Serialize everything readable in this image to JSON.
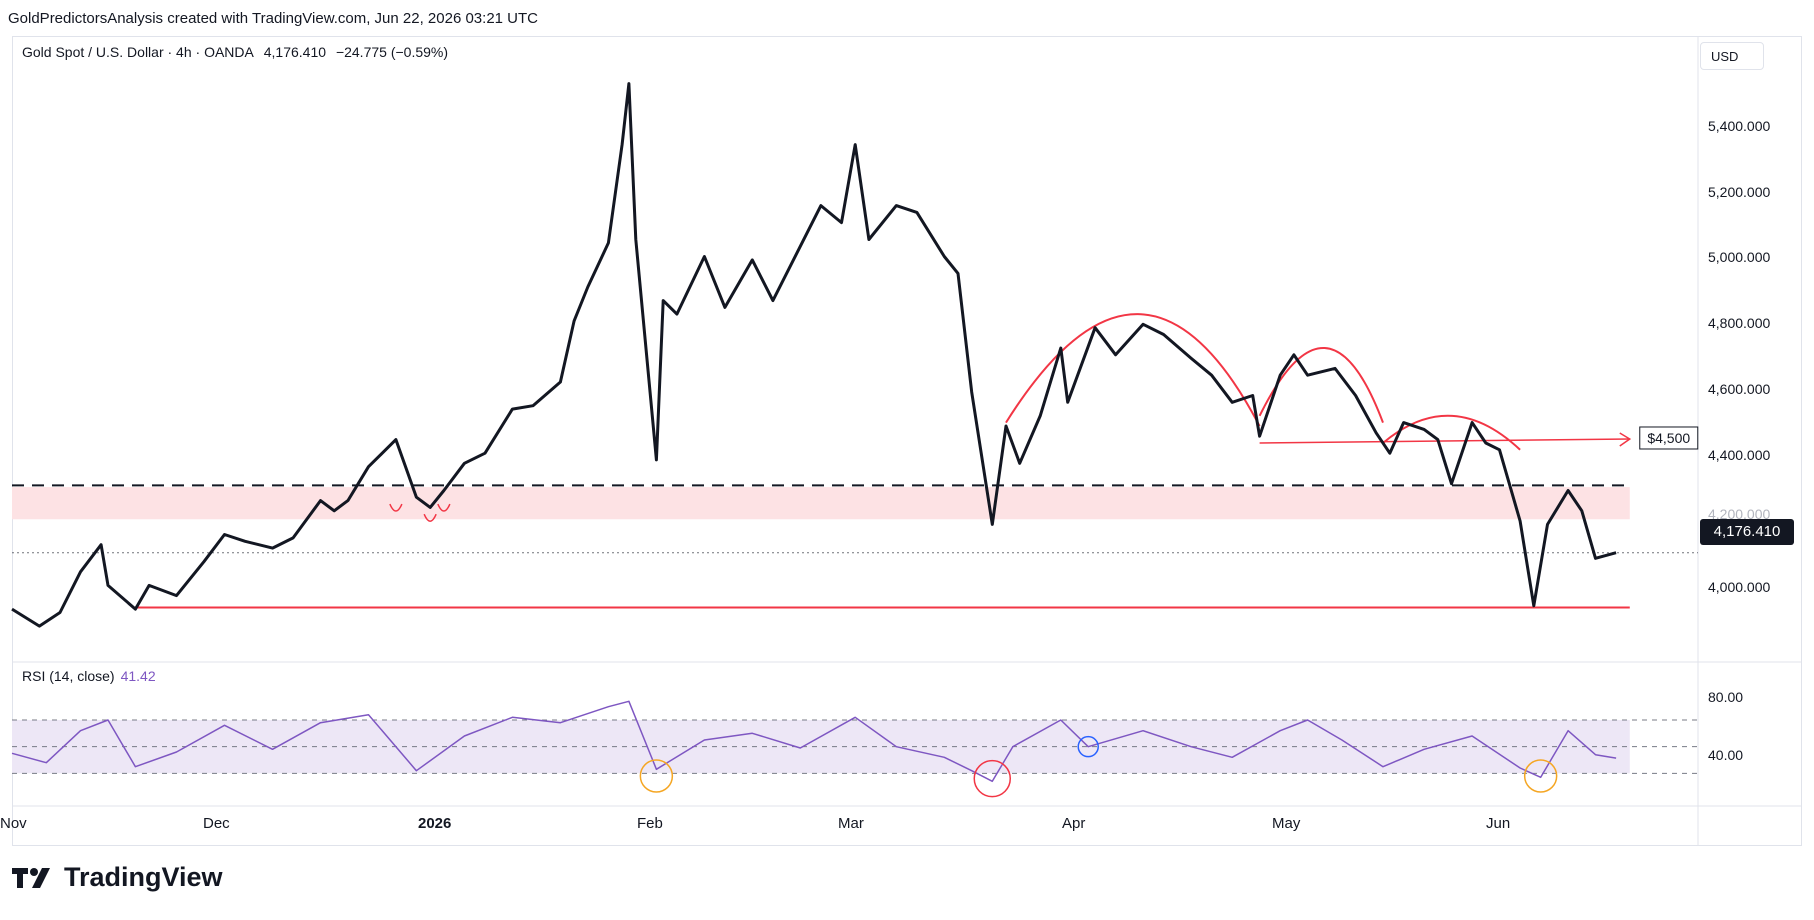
{
  "header": {
    "text": "GoldPredictorsAnalysis created with TradingView.com, Jun 22, 2026 03:21 UTC"
  },
  "legend": {
    "symbol": "Gold Spot / U.S. Dollar · 4h · OANDA",
    "last": "4,176.410",
    "change": "−24.775 (−0.59%)"
  },
  "rsi_legend": {
    "label": "RSI (14, close)",
    "value": "41.42"
  },
  "currency": "USD",
  "price_badge": "4,176.410",
  "brand": "TradingView",
  "colors": {
    "price": "#131722",
    "red": "#f23645",
    "rsi": "#7e57c2",
    "zone": "#fde2e4",
    "rsi_band": "#ede7f6"
  },
  "chart_data": [
    {
      "type": "line",
      "series": [
        {
          "values": [
            [
              "2025-10-31",
              4010
            ],
            [
              "2025-11-04",
              3960
            ],
            [
              "2025-11-07",
              4000
            ],
            [
              "2025-11-10",
              4120
            ],
            [
              "2025-11-13",
              4200
            ],
            [
              "2025-11-14",
              4080
            ],
            [
              "2025-11-18",
              4010
            ],
            [
              "2025-11-20",
              4080
            ],
            [
              "2025-11-24",
              4050
            ],
            [
              "2025-11-28",
              4150
            ],
            [
              "2025-12-01",
              4230
            ],
            [
              "2025-12-04",
              4210
            ],
            [
              "2025-12-08",
              4190
            ],
            [
              "2025-12-11",
              4220
            ],
            [
              "2025-12-15",
              4330
            ],
            [
              "2025-12-17",
              4300
            ],
            [
              "2025-12-19",
              4330
            ],
            [
              "2025-12-22",
              4430
            ],
            [
              "2025-12-26",
              4510
            ],
            [
              "2025-12-29",
              4340
            ],
            [
              "2025-12-31",
              4310
            ],
            [
              "2026-01-02",
              4360
            ],
            [
              "2026-01-05",
              4440
            ],
            [
              "2026-01-08",
              4470
            ],
            [
              "2026-01-12",
              4600
            ],
            [
              "2026-01-15",
              4610
            ],
            [
              "2026-01-19",
              4680
            ],
            [
              "2026-01-21",
              4860
            ],
            [
              "2026-01-23",
              4960
            ],
            [
              "2026-01-26",
              5090
            ],
            [
              "2026-01-28",
              5380
            ],
            [
              "2026-01-29",
              5560
            ],
            [
              "2026-01-30",
              5100
            ],
            [
              "2026-02-02",
              4450
            ],
            [
              "2026-02-03",
              4920
            ],
            [
              "2026-02-05",
              4880
            ],
            [
              "2026-02-09",
              5050
            ],
            [
              "2026-02-12",
              4900
            ],
            [
              "2026-02-16",
              5040
            ],
            [
              "2026-02-19",
              4920
            ],
            [
              "2026-02-23",
              5080
            ],
            [
              "2026-02-26",
              5200
            ],
            [
              "2026-03-01",
              5150
            ],
            [
              "2026-03-03",
              5380
            ],
            [
              "2026-03-05",
              5100
            ],
            [
              "2026-03-09",
              5200
            ],
            [
              "2026-03-12",
              5180
            ],
            [
              "2026-03-16",
              5050
            ],
            [
              "2026-03-18",
              5000
            ],
            [
              "2026-03-20",
              4650
            ],
            [
              "2026-03-23",
              4260
            ],
            [
              "2026-03-25",
              4550
            ],
            [
              "2026-03-27",
              4440
            ],
            [
              "2026-03-30",
              4580
            ],
            [
              "2026-04-02",
              4780
            ],
            [
              "2026-04-03",
              4620
            ],
            [
              "2026-04-07",
              4840
            ],
            [
              "2026-04-10",
              4760
            ],
            [
              "2026-04-14",
              4850
            ],
            [
              "2026-04-17",
              4820
            ],
            [
              "2026-04-21",
              4750
            ],
            [
              "2026-04-24",
              4700
            ],
            [
              "2026-04-27",
              4620
            ],
            [
              "2026-04-30",
              4640
            ],
            [
              "2026-05-01",
              4520
            ],
            [
              "2026-05-04",
              4700
            ],
            [
              "2026-05-06",
              4760
            ],
            [
              "2026-05-08",
              4700
            ],
            [
              "2026-05-12",
              4720
            ],
            [
              "2026-05-15",
              4640
            ],
            [
              "2026-05-18",
              4530
            ],
            [
              "2026-05-20",
              4470
            ],
            [
              "2026-05-22",
              4560
            ],
            [
              "2026-05-25",
              4540
            ],
            [
              "2026-05-27",
              4510
            ],
            [
              "2026-05-29",
              4380
            ],
            [
              "2026-06-01",
              4560
            ],
            [
              "2026-06-03",
              4500
            ],
            [
              "2026-06-05",
              4480
            ],
            [
              "2026-06-08",
              4270
            ],
            [
              "2026-06-10",
              4020
            ],
            [
              "2026-06-12",
              4260
            ],
            [
              "2026-06-15",
              4360
            ],
            [
              "2026-06-17",
              4300
            ],
            [
              "2026-06-19",
              4160
            ],
            [
              "2026-06-22",
              4176.41
            ]
          ]
        }
      ],
      "ylim": [
        3860,
        5600
      ],
      "yticks": [
        "4,000.000",
        "4,200.000",
        "4,400.000",
        "4,600.000",
        "4,800.000",
        "5,000.000",
        "5,200.000",
        "5,400.000"
      ],
      "xticks": [
        "Nov",
        "Dec",
        "2026",
        "Feb",
        "Mar",
        "Apr",
        "May",
        "Jun"
      ],
      "xlim": [
        "2025-10-31",
        "2026-07-20"
      ],
      "annotations": {
        "target_label": "$4,500",
        "support_level": 4015,
        "resistance_level": 4375,
        "zone": [
          4275,
          4370
        ],
        "target_level": 4500
      }
    },
    {
      "type": "line",
      "title": "RSI (14, close)",
      "series": [
        {
          "values": [
            [
              "2025-10-31",
              45
            ],
            [
              "2025-11-05",
              38
            ],
            [
              "2025-11-10",
              62
            ],
            [
              "2025-11-14",
              70
            ],
            [
              "2025-11-18",
              35
            ],
            [
              "2025-11-24",
              46
            ],
            [
              "2025-12-01",
              66
            ],
            [
              "2025-12-08",
              48
            ],
            [
              "2025-12-15",
              68
            ],
            [
              "2025-12-22",
              74
            ],
            [
              "2025-12-29",
              32
            ],
            [
              "2026-01-05",
              58
            ],
            [
              "2026-01-12",
              72
            ],
            [
              "2026-01-19",
              68
            ],
            [
              "2026-01-26",
              80
            ],
            [
              "2026-01-29",
              84
            ],
            [
              "2026-02-02",
              33
            ],
            [
              "2026-02-09",
              55
            ],
            [
              "2026-02-16",
              60
            ],
            [
              "2026-02-23",
              49
            ],
            [
              "2026-03-03",
              72
            ],
            [
              "2026-03-09",
              50
            ],
            [
              "2026-03-16",
              42
            ],
            [
              "2026-03-20",
              32
            ],
            [
              "2026-03-23",
              24
            ],
            [
              "2026-03-26",
              50
            ],
            [
              "2026-04-02",
              70
            ],
            [
              "2026-04-06",
              50
            ],
            [
              "2026-04-14",
              62
            ],
            [
              "2026-04-21",
              50
            ],
            [
              "2026-04-27",
              42
            ],
            [
              "2026-05-04",
              62
            ],
            [
              "2026-05-08",
              70
            ],
            [
              "2026-05-13",
              55
            ],
            [
              "2026-05-19",
              35
            ],
            [
              "2026-05-25",
              48
            ],
            [
              "2026-06-01",
              58
            ],
            [
              "2026-06-08",
              34
            ],
            [
              "2026-06-11",
              27
            ],
            [
              "2026-06-15",
              62
            ],
            [
              "2026-06-19",
              44
            ],
            [
              "2026-06-22",
              41.42
            ]
          ]
        }
      ],
      "ylim": [
        10,
        100
      ],
      "yticks": [
        "40.00",
        "80.00"
      ],
      "bands": {
        "upper": 70,
        "middle": 50,
        "lower": 30
      }
    }
  ]
}
